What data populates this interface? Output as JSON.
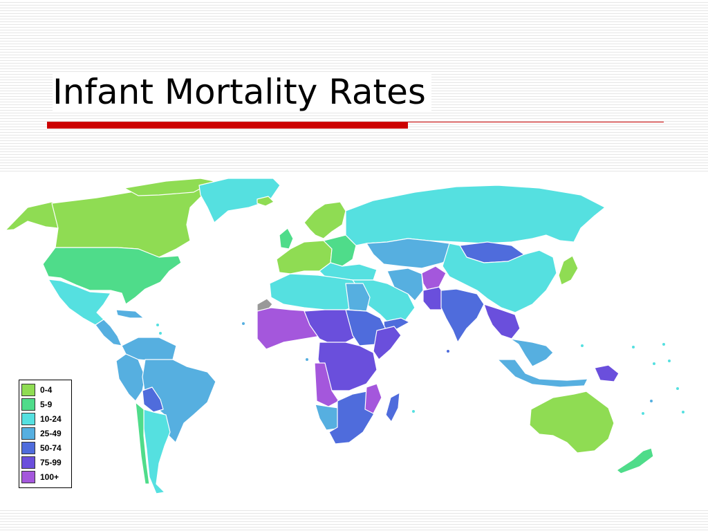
{
  "slide": {
    "title": "Infant Mortality Rates",
    "accent_color": "#cc0000"
  },
  "map": {
    "land_no_data_color": "#999999",
    "ocean_color": "#ffffff",
    "border_color": "#ffffff"
  },
  "legend": {
    "items": [
      {
        "label": "0-4",
        "color": "#8fdc53"
      },
      {
        "label": "5-9",
        "color": "#4fdc8a"
      },
      {
        "label": "10-24",
        "color": "#55e0e0"
      },
      {
        "label": "25-49",
        "color": "#56afe0"
      },
      {
        "label": "50-74",
        "color": "#4f6cdc"
      },
      {
        "label": "75-99",
        "color": "#6a4fdc"
      },
      {
        "label": "100+",
        "color": "#a457dc"
      }
    ]
  }
}
